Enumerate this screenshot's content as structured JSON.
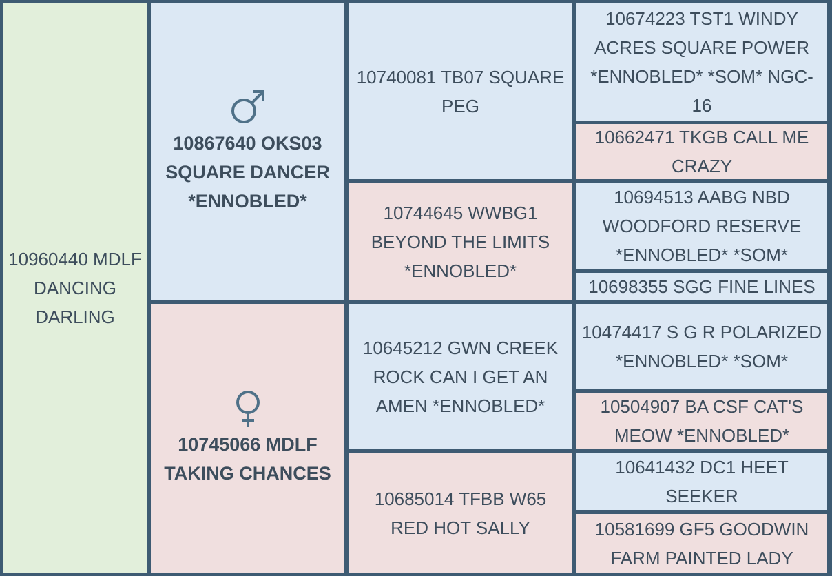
{
  "subject": "10960440 MDLF DANCING DARLING",
  "parents": [
    "10867640 OKS03 SQUARE DANCER *ENNOBLED*",
    "10745066 MDLF TAKING CHANCES"
  ],
  "grandparents": [
    "10740081 TB07 SQUARE PEG",
    "10744645 WWBG1 BEYOND THE LIMITS *ENNOBLED*",
    "10645212 GWN CREEK ROCK CAN I GET AN AMEN *ENNOBLED*",
    "10685014 TFBB W65 RED HOT SALLY"
  ],
  "great_grandparents": [
    "10674223 TST1 WINDY ACRES SQUARE POWER *ENNOBLED* *SOM* NGC-16",
    "10662471 TKGB CALL ME CRAZY",
    "10694513 AABG NBD WOODFORD RESERVE *ENNOBLED* *SOM*",
    "10698355 SGG FINE LINES",
    "10474417 S G R POLARIZED *ENNOBLED* *SOM*",
    "10504907 BA CSF CAT'S MEOW *ENNOBLED*",
    "10641432 DC1 HEET SEEKER",
    "10581699 GF5 GOODWIN FARM PAINTED LADY"
  ]
}
